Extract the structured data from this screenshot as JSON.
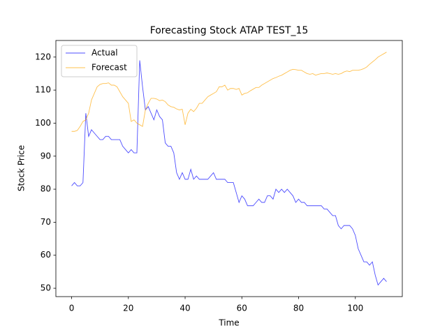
{
  "chart_data": {
    "type": "line",
    "title": "Forecasting Stock ATAP TEST_15",
    "x_label": "Time",
    "y_label": "Stock Price",
    "legend": "upper left",
    "x": [
      0,
      1,
      2,
      3,
      4,
      5,
      6,
      7,
      8,
      9,
      10,
      11,
      12,
      13,
      14,
      15,
      16,
      17,
      18,
      19,
      20,
      21,
      22,
      23,
      24,
      25,
      26,
      27,
      28,
      29,
      30,
      31,
      32,
      33,
      34,
      35,
      36,
      37,
      38,
      39,
      40,
      41,
      42,
      43,
      44,
      45,
      46,
      47,
      48,
      49,
      50,
      51,
      52,
      53,
      54,
      55,
      56,
      57,
      58,
      59,
      60,
      61,
      62,
      63,
      64,
      65,
      66,
      67,
      68,
      69,
      70,
      71,
      72,
      73,
      74,
      75,
      76,
      77,
      78,
      79,
      80,
      81,
      82,
      83,
      84,
      85,
      86,
      87,
      88,
      89,
      90,
      91,
      92,
      93,
      94,
      95,
      96,
      97,
      98,
      99,
      100,
      101,
      102,
      103,
      104,
      105,
      106,
      107,
      108,
      109,
      110,
      111
    ],
    "series": [
      {
        "name": "Actual",
        "color": "#0000ff",
        "values": [
          81,
          82,
          81,
          81,
          82,
          103,
          96,
          98,
          97,
          96,
          95,
          95,
          96,
          96,
          95,
          95,
          95,
          95,
          93,
          92,
          91,
          92,
          91,
          91,
          119,
          111,
          104,
          105,
          103,
          101,
          104,
          102,
          101,
          94,
          93,
          93,
          91,
          85,
          83,
          85,
          83,
          83,
          86,
          83,
          84,
          83,
          83,
          83,
          83,
          84,
          85,
          83,
          83,
          83,
          83,
          82,
          82,
          82,
          79,
          76,
          78,
          77,
          75,
          75,
          75,
          76,
          77,
          76,
          76,
          78,
          78,
          77,
          80,
          79,
          80,
          79,
          80,
          79,
          78,
          76,
          77,
          76,
          76,
          75,
          75,
          75,
          75,
          75,
          75,
          74,
          74,
          73,
          72,
          72,
          69,
          68,
          69,
          69,
          69,
          68,
          66,
          62,
          60,
          58,
          58,
          57,
          58,
          54,
          51,
          52,
          53,
          52
        ]
      },
      {
        "name": "Forecast",
        "color": "#ffa500",
        "values": [
          97.5,
          97.5,
          97.8,
          99,
          100.5,
          101,
          103,
          107,
          109,
          111,
          111.7,
          112,
          112,
          112.2,
          111.5,
          111.5,
          111,
          109.5,
          108,
          107,
          106,
          100.5,
          101,
          100,
          99.5,
          99,
          104,
          106,
          107.5,
          107.5,
          107.3,
          106.8,
          107,
          106.5,
          105.5,
          105,
          104.8,
          104.3,
          104,
          104.2,
          99.5,
          103,
          104.2,
          103.5,
          104.5,
          106,
          106,
          107,
          108,
          108.5,
          109,
          109.5,
          111,
          111,
          111.5,
          110,
          110.5,
          110.5,
          110.2,
          110.5,
          108.5,
          109,
          109.2,
          109.8,
          110.3,
          110.8,
          110.8,
          111.5,
          112,
          112.5,
          113,
          113.5,
          113.8,
          114.2,
          114.5,
          115,
          115.5,
          116,
          116.3,
          116.2,
          116,
          116,
          115.5,
          115,
          114.8,
          115,
          114.5,
          114.8,
          115,
          115,
          115.2,
          115,
          114.8,
          115,
          114.8,
          115,
          115.5,
          115.8,
          115.6,
          116,
          116,
          116,
          116.2,
          116.5,
          117,
          117.8,
          118.5,
          119.2,
          120,
          120.5,
          121,
          121.5
        ]
      }
    ],
    "xlim": [
      -5.55,
      116.55
    ],
    "ylim": [
      47.475,
      125.025
    ],
    "xticks": [
      0,
      20,
      40,
      60,
      80,
      100
    ],
    "yticks": [
      50,
      60,
      70,
      80,
      90,
      100,
      110,
      120
    ]
  }
}
